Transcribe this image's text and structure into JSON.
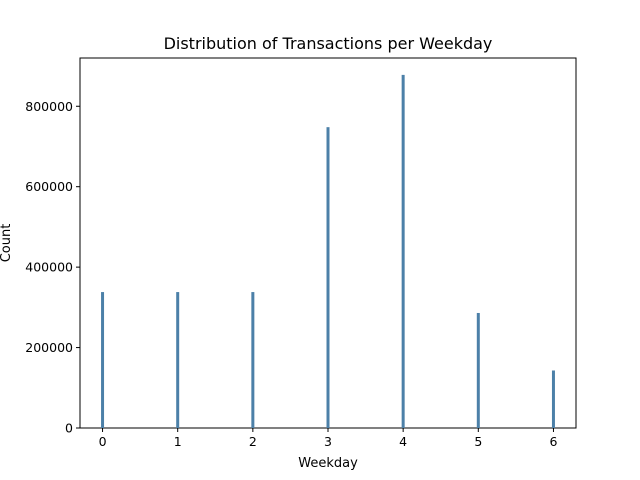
{
  "chart_data": {
    "type": "bar",
    "title": "Distribution of Transactions per Weekday",
    "xlabel": "Weekday",
    "ylabel": "Count",
    "categories": [
      0,
      1,
      2,
      3,
      4,
      5,
      6
    ],
    "values": [
      338000,
      338000,
      338000,
      748000,
      878000,
      286000,
      143000
    ],
    "xlim": [
      -0.3,
      6.3
    ],
    "ylim": [
      0,
      920000
    ],
    "xticks": [
      "0",
      "1",
      "2",
      "3",
      "4",
      "5",
      "6"
    ],
    "yticks": [
      0,
      200000,
      400000,
      600000,
      800000
    ],
    "ytick_labels": [
      "0",
      "200000",
      "400000",
      "600000",
      "800000"
    ],
    "bar_color": "#4c80a8",
    "grid": false,
    "legend": "none"
  }
}
